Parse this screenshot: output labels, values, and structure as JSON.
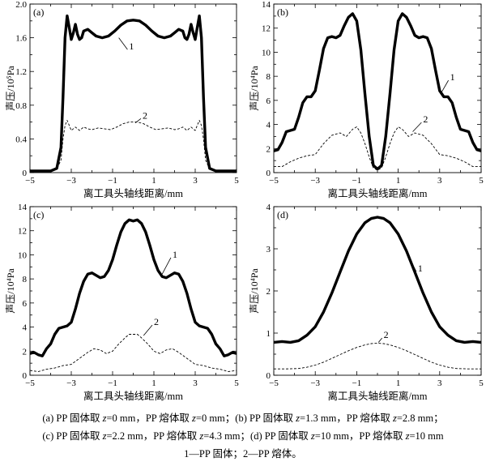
{
  "chart_data": [
    {
      "type": "line",
      "panel_label": "(a)",
      "xlabel": "离工具头轴线距离/mm",
      "ylabel": "声压/10⁵Pa",
      "xlim": [
        -5,
        5
      ],
      "ylim": [
        0,
        2.0
      ],
      "xticks": [
        -5,
        -3,
        -1,
        1,
        3,
        5
      ],
      "yticks": [
        0,
        0.4,
        0.8,
        1.2,
        1.6,
        2.0
      ],
      "ytick_labels": [
        "0",
        "0.4",
        "0.8",
        "1.2",
        "1.6",
        "2.0"
      ],
      "series": [
        {
          "name": "1",
          "style": "thick",
          "x": [
            -5,
            -4,
            -3.7,
            -3.5,
            -3.4,
            -3.3,
            -3.2,
            -3.1,
            -3.0,
            -2.9,
            -2.8,
            -2.7,
            -2.6,
            -2.5,
            -2.4,
            -2.2,
            -2.0,
            -1.8,
            -1.5,
            -1.2,
            -0.9,
            -0.6,
            -0.3,
            0,
            0.3,
            0.6,
            0.9,
            1.2,
            1.5,
            1.8,
            2.0,
            2.2,
            2.4,
            2.5,
            2.6,
            2.7,
            2.8,
            2.9,
            3.0,
            3.1,
            3.2,
            3.3,
            3.4,
            3.5,
            3.7,
            4,
            5
          ],
          "y": [
            0.02,
            0.02,
            0.05,
            0.3,
            0.9,
            1.6,
            1.86,
            1.72,
            1.58,
            1.66,
            1.76,
            1.64,
            1.58,
            1.6,
            1.68,
            1.7,
            1.66,
            1.62,
            1.6,
            1.62,
            1.68,
            1.75,
            1.8,
            1.81,
            1.8,
            1.75,
            1.68,
            1.62,
            1.6,
            1.62,
            1.66,
            1.7,
            1.68,
            1.6,
            1.58,
            1.64,
            1.76,
            1.66,
            1.58,
            1.72,
            1.86,
            1.6,
            0.9,
            0.3,
            0.05,
            0.02,
            0.02
          ]
        },
        {
          "name": "2",
          "style": "dashed",
          "x": [
            -5,
            -4,
            -3.7,
            -3.5,
            -3.4,
            -3.3,
            -3.2,
            -3.1,
            -3.0,
            -2.8,
            -2.6,
            -2.4,
            -2.2,
            -2.0,
            -1.7,
            -1.4,
            -1.1,
            -0.8,
            -0.5,
            -0.2,
            0,
            0.2,
            0.5,
            0.8,
            1.1,
            1.4,
            1.7,
            2.0,
            2.2,
            2.4,
            2.6,
            2.8,
            3.0,
            3.1,
            3.2,
            3.3,
            3.4,
            3.5,
            3.7,
            4,
            5
          ],
          "y": [
            0.02,
            0.02,
            0.04,
            0.15,
            0.4,
            0.56,
            0.62,
            0.56,
            0.5,
            0.54,
            0.5,
            0.54,
            0.52,
            0.51,
            0.53,
            0.52,
            0.51,
            0.54,
            0.58,
            0.6,
            0.6,
            0.6,
            0.58,
            0.54,
            0.51,
            0.52,
            0.53,
            0.51,
            0.52,
            0.54,
            0.5,
            0.54,
            0.5,
            0.56,
            0.62,
            0.56,
            0.4,
            0.15,
            0.04,
            0.02,
            0.02
          ]
        }
      ],
      "annotations": [
        {
          "text": "1",
          "x": -0.2,
          "y": 1.48,
          "to_x": -0.7,
          "to_y": 1.6
        },
        {
          "text": "2",
          "x": 0.45,
          "y": 0.66,
          "to_x": 0.1,
          "to_y": 0.59
        }
      ]
    },
    {
      "type": "line",
      "panel_label": "(b)",
      "xlabel": "离工具头轴线距离/mm",
      "ylabel": "声压/10⁴Pa",
      "xlim": [
        -5,
        5
      ],
      "ylim": [
        0,
        14
      ],
      "xticks": [
        -5,
        -3,
        -1,
        1,
        3,
        5
      ],
      "yticks": [
        0,
        2,
        4,
        6,
        8,
        10,
        12,
        14
      ],
      "ytick_labels": [
        "0",
        "2",
        "4",
        "6",
        "8",
        "10",
        "12",
        "14"
      ],
      "series": [
        {
          "name": "1",
          "style": "thick",
          "x": [
            -5,
            -4.8,
            -4.6,
            -4.4,
            -4.2,
            -4.0,
            -3.8,
            -3.6,
            -3.4,
            -3.2,
            -3.0,
            -2.8,
            -2.6,
            -2.4,
            -2.2,
            -2.0,
            -1.8,
            -1.6,
            -1.4,
            -1.2,
            -1.0,
            -0.8,
            -0.6,
            -0.4,
            -0.2,
            0,
            0.2,
            0.4,
            0.6,
            0.8,
            1.0,
            1.2,
            1.4,
            1.6,
            1.8,
            2.0,
            2.2,
            2.4,
            2.6,
            2.8,
            3.0,
            3.2,
            3.4,
            3.6,
            3.8,
            4.0,
            4.2,
            4.4,
            4.6,
            4.8,
            5
          ],
          "y": [
            1.8,
            1.9,
            2.5,
            3.4,
            3.5,
            3.6,
            4.6,
            5.8,
            6.3,
            6.3,
            6.8,
            8.5,
            10.3,
            11.2,
            11.3,
            11.2,
            11.4,
            12.2,
            12.9,
            13.2,
            12.6,
            10.2,
            6.5,
            3.0,
            0.6,
            0.3,
            0.6,
            3.0,
            6.5,
            10.2,
            12.6,
            13.2,
            12.9,
            12.2,
            11.4,
            11.2,
            11.3,
            11.2,
            10.3,
            8.5,
            6.8,
            6.3,
            6.3,
            5.8,
            4.6,
            3.6,
            3.5,
            3.4,
            2.5,
            1.9,
            1.8
          ]
        },
        {
          "name": "2",
          "style": "dashed",
          "x": [
            -5,
            -4.6,
            -4.2,
            -3.8,
            -3.4,
            -3.0,
            -2.6,
            -2.2,
            -1.8,
            -1.5,
            -1.2,
            -1.0,
            -0.8,
            -0.6,
            -0.4,
            -0.2,
            0,
            0.2,
            0.4,
            0.6,
            0.8,
            1.0,
            1.2,
            1.5,
            1.8,
            2.2,
            2.6,
            3.0,
            3.4,
            3.8,
            4.2,
            4.6,
            5
          ],
          "y": [
            0.5,
            0.5,
            0.9,
            1.2,
            1.4,
            1.5,
            2.4,
            3.1,
            3.3,
            3.0,
            3.6,
            3.8,
            3.3,
            2.4,
            1.3,
            0.4,
            0.2,
            0.4,
            1.3,
            2.4,
            3.3,
            3.8,
            3.6,
            3.0,
            3.3,
            3.1,
            2.4,
            1.5,
            1.4,
            1.2,
            0.9,
            0.5,
            0.5
          ]
        }
      ],
      "annotations": [
        {
          "text": "1",
          "x": 3.5,
          "y": 7.8,
          "to_x": 3.1,
          "to_y": 6.7
        },
        {
          "text": "2",
          "x": 2.2,
          "y": 4.3,
          "to_x": 1.7,
          "to_y": 3.4
        }
      ]
    },
    {
      "type": "line",
      "panel_label": "(c)",
      "xlabel": "离工具头轴线距离/mm",
      "ylabel": "声压/10⁴Pa",
      "xlim": [
        -5,
        5
      ],
      "ylim": [
        0,
        14
      ],
      "xticks": [
        -5,
        -3,
        -1,
        1,
        3,
        5
      ],
      "yticks": [
        0,
        2,
        4,
        6,
        8,
        10,
        12,
        14
      ],
      "ytick_labels": [
        "0",
        "2",
        "4",
        "6",
        "8",
        "10",
        "12",
        "14"
      ],
      "series": [
        {
          "name": "1",
          "style": "thick",
          "x": [
            -5,
            -4.8,
            -4.6,
            -4.4,
            -4.2,
            -4.0,
            -3.8,
            -3.6,
            -3.4,
            -3.2,
            -3.0,
            -2.8,
            -2.6,
            -2.4,
            -2.2,
            -2.0,
            -1.8,
            -1.6,
            -1.4,
            -1.2,
            -1.0,
            -0.8,
            -0.6,
            -0.4,
            -0.2,
            0,
            0.2,
            0.4,
            0.6,
            0.8,
            1.0,
            1.2,
            1.4,
            1.6,
            1.8,
            2.0,
            2.2,
            2.4,
            2.6,
            2.8,
            3.0,
            3.2,
            3.4,
            3.6,
            3.8,
            4.0,
            4.2,
            4.4,
            4.6,
            4.8,
            5
          ],
          "y": [
            1.8,
            1.9,
            1.7,
            1.6,
            2.2,
            2.6,
            3.4,
            3.9,
            4.0,
            4.1,
            4.4,
            5.5,
            6.8,
            7.8,
            8.4,
            8.5,
            8.3,
            8.1,
            8.2,
            8.7,
            9.6,
            10.8,
            11.9,
            12.6,
            12.9,
            12.8,
            12.9,
            12.6,
            11.9,
            10.8,
            9.6,
            8.7,
            8.2,
            8.1,
            8.3,
            8.5,
            8.4,
            7.8,
            6.8,
            5.5,
            4.4,
            4.1,
            4.0,
            3.9,
            3.4,
            2.6,
            2.2,
            1.6,
            1.7,
            1.9,
            1.8
          ]
        },
        {
          "name": "2",
          "style": "dashed",
          "x": [
            -5,
            -4.6,
            -4.2,
            -3.8,
            -3.4,
            -3.0,
            -2.6,
            -2.2,
            -1.9,
            -1.6,
            -1.3,
            -1.0,
            -0.7,
            -0.4,
            -0.2,
            0,
            0.2,
            0.4,
            0.7,
            1.0,
            1.3,
            1.6,
            1.9,
            2.2,
            2.6,
            3.0,
            3.4,
            3.8,
            4.2,
            4.6,
            5
          ],
          "y": [
            0.4,
            0.3,
            0.5,
            0.6,
            0.8,
            0.9,
            1.4,
            1.9,
            2.2,
            2.1,
            1.8,
            2.0,
            2.6,
            3.1,
            3.4,
            3.4,
            3.4,
            3.1,
            2.6,
            2.0,
            1.8,
            2.1,
            2.2,
            1.9,
            1.4,
            0.9,
            0.8,
            0.6,
            0.5,
            0.3,
            0.4
          ]
        }
      ],
      "annotations": [
        {
          "text": "1",
          "x": 1.9,
          "y": 9.9,
          "to_x": 1.4,
          "to_y": 8.4
        },
        {
          "text": "2",
          "x": 1.0,
          "y": 4.3,
          "to_x": 0.5,
          "to_y": 3.3
        }
      ]
    },
    {
      "type": "line",
      "panel_label": "(d)",
      "xlabel": "离工具头轴线距离/mm",
      "ylabel": "声压/10⁴Pa",
      "xlim": [
        -5,
        5
      ],
      "ylim": [
        0,
        4
      ],
      "xticks": [
        -5,
        -3,
        -1,
        1,
        3,
        5
      ],
      "yticks": [
        0,
        1,
        2,
        3,
        4
      ],
      "ytick_labels": [
        "0",
        "1",
        "2",
        "3",
        "4"
      ],
      "series": [
        {
          "name": "1",
          "style": "thick",
          "x": [
            -5,
            -4.6,
            -4.2,
            -3.8,
            -3.4,
            -3.0,
            -2.6,
            -2.2,
            -1.8,
            -1.4,
            -1.0,
            -0.6,
            -0.3,
            0,
            0.3,
            0.6,
            1.0,
            1.4,
            1.8,
            2.2,
            2.6,
            3.0,
            3.4,
            3.8,
            4.2,
            4.6,
            5
          ],
          "y": [
            0.78,
            0.8,
            0.78,
            0.82,
            0.95,
            1.15,
            1.5,
            1.95,
            2.45,
            2.95,
            3.35,
            3.62,
            3.72,
            3.75,
            3.72,
            3.62,
            3.35,
            2.95,
            2.45,
            1.95,
            1.5,
            1.15,
            0.95,
            0.82,
            0.78,
            0.8,
            0.78
          ]
        },
        {
          "name": "2",
          "style": "dashed",
          "x": [
            -5,
            -4.4,
            -3.8,
            -3.4,
            -3.0,
            -2.6,
            -2.2,
            -1.8,
            -1.4,
            -1.0,
            -0.6,
            -0.3,
            0,
            0.3,
            0.6,
            1.0,
            1.4,
            1.8,
            2.2,
            2.6,
            3.0,
            3.4,
            3.8,
            4.4,
            5
          ],
          "y": [
            0.15,
            0.15,
            0.16,
            0.19,
            0.24,
            0.31,
            0.4,
            0.49,
            0.58,
            0.66,
            0.72,
            0.75,
            0.76,
            0.75,
            0.72,
            0.66,
            0.58,
            0.49,
            0.4,
            0.31,
            0.24,
            0.19,
            0.16,
            0.15,
            0.15
          ]
        }
      ],
      "annotations": [
        {
          "text": "1",
          "x": 1.95,
          "y": 2.5,
          "to_x": 1.6,
          "to_y": 2.72
        },
        {
          "text": "2",
          "x": 0.3,
          "y": 0.92,
          "to_x": 0.05,
          "to_y": 0.78
        }
      ]
    }
  ],
  "caption": {
    "line1": [
      {
        "t": "(a) PP 固体取 "
      },
      {
        "t": "z",
        "i": true
      },
      {
        "t": "=0 mm，PP 熔体取 "
      },
      {
        "t": "z",
        "i": true
      },
      {
        "t": "=0 mm；(b) PP 固体取 "
      },
      {
        "t": "z",
        "i": true
      },
      {
        "t": "=1.3 mm，PP 熔体取 "
      },
      {
        "t": "z",
        "i": true
      },
      {
        "t": "=2.8 mm；"
      }
    ],
    "line2": [
      {
        "t": "(c) PP 固体取 "
      },
      {
        "t": "z",
        "i": true
      },
      {
        "t": "=2.2 mm，PP 熔体取 "
      },
      {
        "t": "z",
        "i": true
      },
      {
        "t": "=4.3 mm；(d) PP 固体取 "
      },
      {
        "t": "z",
        "i": true
      },
      {
        "t": "=10 mm，PP 熔体取 "
      },
      {
        "t": "z",
        "i": true
      },
      {
        "t": "=10 mm"
      }
    ],
    "line3": [
      {
        "t": "1—PP 固体；2—PP 熔体。"
      }
    ]
  }
}
